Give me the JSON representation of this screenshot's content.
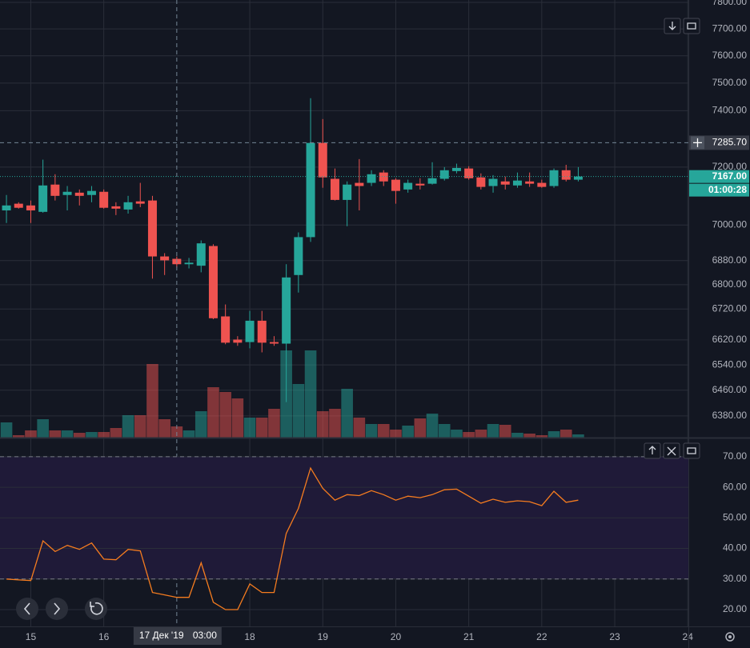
{
  "chart_data": [
    {
      "type": "candlestick",
      "log_scale": true,
      "grid": true,
      "up_color": "#26a69a",
      "down_color": "#ef5350",
      "xlim": [
        -0.53,
        56.05
      ],
      "ylim": [
        6313,
        7809
      ],
      "xticks": [
        {
          "value": 2,
          "label": "15"
        },
        {
          "value": 8,
          "label": "16"
        },
        {
          "value": 20,
          "label": "18"
        },
        {
          "value": 26,
          "label": "19"
        },
        {
          "value": 32,
          "label": "20"
        },
        {
          "value": 38,
          "label": "21"
        },
        {
          "value": 44,
          "label": "22"
        },
        {
          "value": 50,
          "label": "23"
        },
        {
          "value": 56,
          "label": "24"
        }
      ],
      "yticks": [
        {
          "value": 7800,
          "label": "7800.00"
        },
        {
          "value": 7700,
          "label": "7700.00"
        },
        {
          "value": 7600,
          "label": "7600.00"
        },
        {
          "value": 7500,
          "label": "7500.00"
        },
        {
          "value": 7400,
          "label": "7400.00"
        },
        {
          "value": 7200,
          "label": "7200.00"
        },
        {
          "value": 7000,
          "label": "7000.00"
        },
        {
          "value": 6880,
          "label": "6880.00"
        },
        {
          "value": 6800,
          "label": "6800.00"
        },
        {
          "value": 6720,
          "label": "6720.00"
        },
        {
          "value": 6620,
          "label": "6620.00"
        },
        {
          "value": 6540,
          "label": "6540.00"
        },
        {
          "value": 6460,
          "label": "6460.00"
        },
        {
          "value": 6380,
          "label": "6380.00"
        }
      ],
      "open": [
        7050,
        7073,
        7067,
        7045,
        7139,
        7103,
        7111,
        7103,
        7114,
        7064,
        7053,
        7081,
        7084,
        6894,
        6886,
        6868,
        6863,
        6929,
        6696,
        6621,
        6613,
        6682,
        6613,
        6608,
        6832,
        6959,
        7285,
        7159,
        7086,
        7145,
        7145,
        7181,
        7156,
        7122,
        7142,
        7142,
        7159,
        7186,
        7195,
        7164,
        7134,
        7150,
        7136,
        7150,
        7145,
        7134,
        7189,
        7156
      ],
      "high": [
        7103,
        7078,
        7084,
        7226,
        7175,
        7134,
        7122,
        7134,
        7122,
        7078,
        7100,
        7145,
        7100,
        6905,
        6894,
        6889,
        6948,
        6935,
        6735,
        6632,
        6714,
        6714,
        6632,
        6868,
        6975,
        7445,
        7370,
        7195,
        7150,
        7228,
        7189,
        7189,
        7161,
        7156,
        7161,
        7217,
        7200,
        7212,
        7203,
        7178,
        7172,
        7167,
        7181,
        7181,
        7156,
        7195,
        7208,
        7200
      ],
      "low": [
        7007,
        7056,
        7007,
        7042,
        7084,
        7050,
        7067,
        7078,
        7056,
        7034,
        7039,
        7061,
        6820,
        6832,
        6857,
        6854,
        6841,
        6687,
        6606,
        6601,
        6593,
        6580,
        6601,
        6423,
        6774,
        6943,
        7128,
        7084,
        6996,
        7050,
        7134,
        7134,
        7073,
        7111,
        7122,
        7139,
        7153,
        7178,
        7156,
        7122,
        7111,
        7122,
        7128,
        7131,
        7128,
        7128,
        7150,
        7150
      ],
      "close": [
        7067,
        7059,
        7050,
        7136,
        7100,
        7114,
        7100,
        7117,
        7059,
        7056,
        7078,
        7073,
        6894,
        6881,
        6868,
        6873,
        6938,
        6690,
        6611,
        6611,
        6682,
        6611,
        6608,
        6824,
        6959,
        7285,
        7164,
        7086,
        7139,
        7134,
        7175,
        7150,
        7117,
        7145,
        7136,
        7161,
        7189,
        7197,
        7161,
        7131,
        7159,
        7139,
        7153,
        7142,
        7131,
        7189,
        7156,
        7167
      ],
      "volume": [
        19,
        3,
        9,
        23,
        9,
        9,
        6,
        7,
        7,
        12,
        28,
        28,
        92,
        23,
        14,
        9,
        33,
        63,
        57,
        49,
        25,
        25,
        36,
        109,
        67,
        109,
        33,
        36,
        61,
        25,
        17,
        17,
        10,
        15,
        24,
        30,
        17,
        10,
        7,
        10,
        17,
        16,
        6,
        5,
        3,
        8,
        10,
        4
      ],
      "crosshair": {
        "x": 14,
        "price": {
          "value": 7285.7,
          "label": "7285.70"
        },
        "date": "17 Дек '19",
        "time": "03:00"
      },
      "last_price": {
        "value": 7167,
        "label": "7167.00"
      },
      "countdown": "01:00:28"
    },
    {
      "type": "line",
      "color": "#f57c1f",
      "band_color": "#1f1a38",
      "ylim": [
        14.5,
        76
      ],
      "bands": [
        30,
        70
      ],
      "yticks": [
        {
          "value": 70,
          "label": "70.00"
        },
        {
          "value": 60,
          "label": "60.00"
        },
        {
          "value": 50,
          "label": "50.00"
        },
        {
          "value": 40,
          "label": "40.00"
        },
        {
          "value": 30,
          "label": "30.00"
        },
        {
          "value": 20,
          "label": "20.00"
        }
      ],
      "values": [
        30,
        29.7,
        29.5,
        42.5,
        39,
        41,
        39.7,
        41.8,
        36.5,
        36.3,
        39.7,
        39.2,
        25.6,
        24.8,
        24,
        24,
        35.3,
        22.4,
        20,
        20,
        28.4,
        25.6,
        25.6,
        44.9,
        53.1,
        66.3,
        59.7,
        55.8,
        57.6,
        57.3,
        58.9,
        57.6,
        55.8,
        57.1,
        56.6,
        57.6,
        59.2,
        59.4,
        57.1,
        54.8,
        56.1,
        55.1,
        55.6,
        55.3,
        54,
        58.7,
        55.1,
        55.8
      ]
    }
  ]
}
